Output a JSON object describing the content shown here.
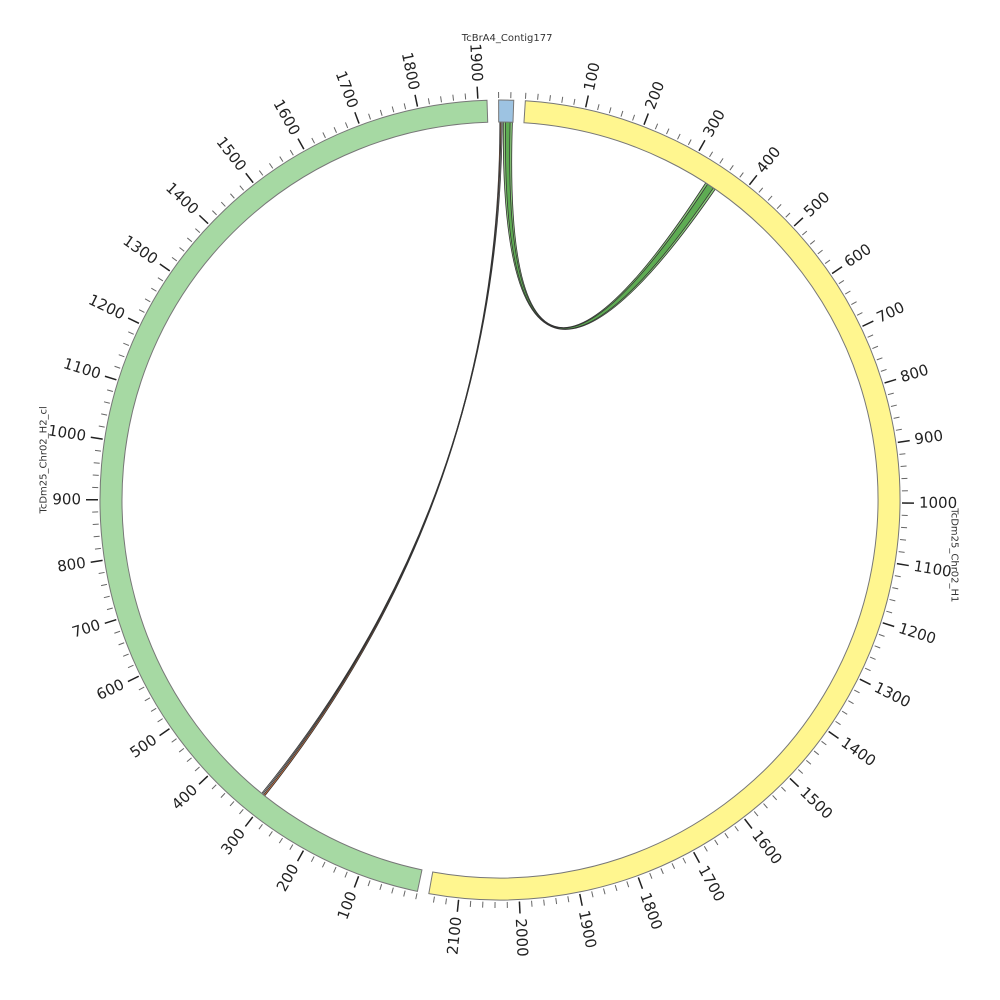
{
  "chart_data": {
    "type": "chord",
    "minor_tick_interval": 20,
    "segments": [
      {
        "name": "TcBrA4_Contig177",
        "length": 25,
        "color": "#9dc3e2",
        "ticks": []
      },
      {
        "name": "TcDm25_Chr02_H1",
        "length": 2150,
        "color": "#fff68f",
        "ticks": [
          100,
          200,
          300,
          400,
          500,
          600,
          700,
          800,
          900,
          1000,
          1100,
          1200,
          1300,
          1400,
          1500,
          1600,
          1700,
          1800,
          1900,
          2000,
          2100
        ]
      },
      {
        "name": "TcDm25_Chr02_H2_cl",
        "length": 1915,
        "color": "#a6d9a3",
        "ticks": [
          100,
          200,
          300,
          400,
          500,
          600,
          700,
          800,
          900,
          1000,
          1100,
          1200,
          1300,
          1400,
          1500,
          1600,
          1700,
          1800,
          1900
        ]
      }
    ],
    "links": [
      {
        "source": 0,
        "source_start": 8,
        "source_end": 24,
        "target": 1,
        "target_start": 338,
        "target_end": 358,
        "color": "#7cc46a"
      },
      {
        "source": 0,
        "source_start": 12,
        "source_end": 20,
        "target": 1,
        "target_start": 342,
        "target_end": 354,
        "color": "#5aa84f"
      },
      {
        "source": 0,
        "source_start": 2,
        "source_end": 4,
        "target": 2,
        "target_start": 306,
        "target_end": 309,
        "color": "#c8642e"
      },
      {
        "source": 0,
        "source_start": 4,
        "source_end": 6,
        "target": 2,
        "target_start": 311,
        "target_end": 313,
        "color": "#f0f0f0"
      }
    ]
  }
}
